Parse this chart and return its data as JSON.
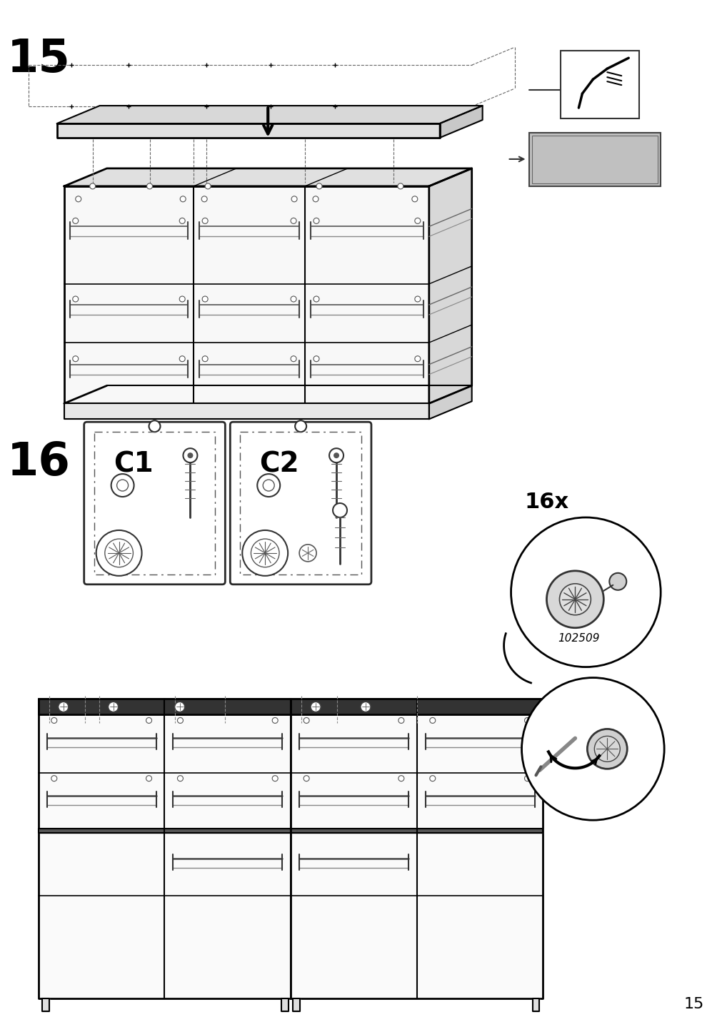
{
  "page_number": "15",
  "step_15": "15",
  "step_16": "16",
  "background_color": "#ffffff",
  "line_color": "#000000",
  "gray_color": "#c0c0c0",
  "light_gray": "#e0e0e0",
  "part_labels": [
    "C1",
    "C2"
  ],
  "quantity_label": "16x",
  "part_code": "102509"
}
